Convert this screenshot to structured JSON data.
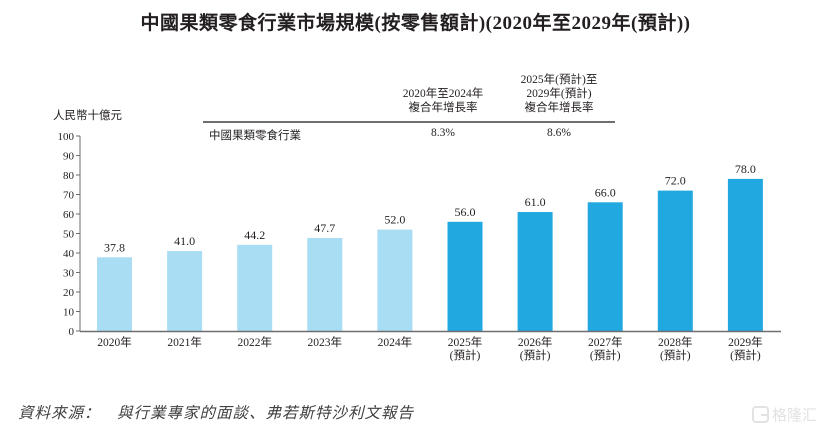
{
  "chart_data": {
    "type": "bar",
    "title": "中國果類零食行業市場規模(按零售額計)(2020年至2029年(預計))",
    "xlabel": "",
    "ylabel": "人民幣十億元",
    "ylim": [
      0,
      100
    ],
    "yticks": [
      0,
      10,
      20,
      30,
      40,
      50,
      60,
      70,
      80,
      90,
      100
    ],
    "grid": false,
    "categories": [
      "2020年",
      "2021年",
      "2022年",
      "2023年",
      "2024年",
      "2025年",
      "2026年",
      "2027年",
      "2028年",
      "2029年"
    ],
    "category_sublabels": [
      "",
      "",
      "",
      "",
      "",
      "(預計)",
      "(預計)",
      "(預計)",
      "(預計)",
      "(預計)"
    ],
    "values": [
      37.8,
      41.0,
      44.2,
      47.7,
      52.0,
      56.0,
      61.0,
      66.0,
      72.0,
      78.0
    ],
    "value_labels": [
      "37.8",
      "41.0",
      "44.2",
      "47.7",
      "52.0",
      "56.0",
      "61.0",
      "66.0",
      "72.0",
      "78.0"
    ],
    "is_forecast": [
      false,
      false,
      false,
      false,
      false,
      true,
      true,
      true,
      true,
      true
    ],
    "colors": {
      "historical": "#a8ddf3",
      "forecast": "#22a8e0",
      "axis": "#6d6e71",
      "text": "#231f20"
    },
    "cagr_table": {
      "headers": [
        "2020年至2024年\n複合年增長率",
        "2025年(預計)至\n2029年(預計)\n複合年增長率"
      ],
      "rows": [
        {
          "label": "中國果類零食行業",
          "values": [
            "8.3%",
            "8.6%"
          ]
        }
      ]
    }
  },
  "header": {
    "title": "中國果類零食行業市場規模(按零售額計)(2020年至2029年(預計))"
  },
  "cagr": {
    "head1_line1": "2020年至2024年",
    "head1_line2": "複合年增長率",
    "head2_line1": "2025年(預計)至",
    "head2_line2": "2029年(預計)",
    "head2_line3": "複合年增長率",
    "row_label": "中國果類零食行業",
    "value1": "8.3%",
    "value2": "8.6%"
  },
  "axis": {
    "unit_label": "人民幣十億元"
  },
  "footer": {
    "source": "資料來源：　與行業專家的面談、弗若斯特沙利文報告"
  },
  "watermark": {
    "text": "格隆汇"
  }
}
